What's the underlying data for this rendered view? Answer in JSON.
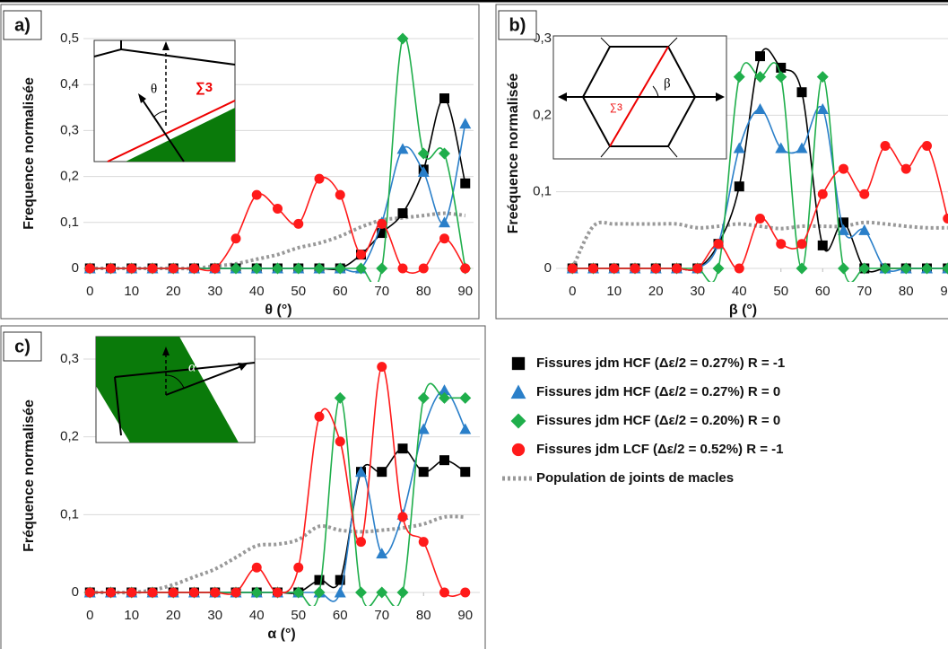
{
  "legend": [
    {
      "name": "Fissures jdm HCF (Δε/2 =  0.27%) R = -1",
      "color": "#000000",
      "marker": "square"
    },
    {
      "name": "Fissures jdm HCF (Δε/2 =  0.27%) R = 0",
      "color": "#2a7fc9",
      "marker": "triangle"
    },
    {
      "name": "Fissures jdm HCF (Δε/2 =  0.20%) R = 0",
      "color": "#1fae4b",
      "marker": "diamond"
    },
    {
      "name": "Fissures jdm LCF (Δε/2 =  0.52%) R = -1",
      "color": "#ff1a1a",
      "marker": "circle"
    },
    {
      "name": "Population de joints de macles",
      "color": "#999999",
      "marker": "dotted-line"
    }
  ],
  "chart_data": [
    {
      "type": "line",
      "panel_label": "a)",
      "x_label": "θ (°)",
      "y_label": "Frequence normalisée",
      "inset_labels": [
        "θ",
        "∑3"
      ],
      "x": [
        0,
        5,
        10,
        15,
        20,
        25,
        30,
        35,
        40,
        45,
        50,
        55,
        60,
        65,
        70,
        75,
        80,
        85,
        90
      ],
      "xlim": [
        -5,
        95
      ],
      "xticks": [
        0,
        10,
        20,
        30,
        40,
        50,
        60,
        70,
        80,
        90
      ],
      "ylim": [
        0,
        0.5
      ],
      "yticks": [
        0,
        {
          "value": 0.1,
          "label": "0,1"
        },
        {
          "value": 0.2,
          "label": "0,2"
        },
        {
          "value": 0.3,
          "label": "0,3"
        },
        {
          "value": 0.4,
          "label": "0,4"
        },
        {
          "value": 0.5,
          "label": "0,5"
        }
      ],
      "grid": true,
      "series": [
        {
          "values": [
            0,
            0,
            0,
            0,
            0,
            0,
            0,
            0,
            0,
            0,
            0,
            0,
            0,
            0.03,
            0.077,
            0.12,
            0.215,
            0.37,
            0.185
          ]
        },
        {
          "values": [
            0,
            0,
            0,
            0,
            0,
            0,
            0,
            0,
            0,
            0,
            0,
            0,
            0,
            0,
            0.1,
            0.26,
            0.21,
            0.1,
            0.315
          ]
        },
        {
          "values": [
            0,
            0,
            0,
            0,
            0,
            0,
            0,
            0,
            0,
            0,
            0,
            0,
            0,
            0,
            0,
            0.5,
            0.25,
            0.25,
            0
          ]
        },
        {
          "values": [
            0,
            0,
            0,
            0,
            0,
            0,
            0,
            0.065,
            0.16,
            0.13,
            0.097,
            0.195,
            0.16,
            0.03,
            0.097,
            0,
            0,
            0.065,
            0
          ]
        },
        {
          "values": [
            0,
            0,
            0,
            0,
            0,
            0,
            0.005,
            0.01,
            0.02,
            0.03,
            0.045,
            0.055,
            0.07,
            0.09,
            0.105,
            0.11,
            0.115,
            0.12,
            0.115
          ]
        }
      ]
    },
    {
      "type": "line",
      "panel_label": "b)",
      "x_label": "β (°)",
      "y_label": "Freéquence normalisée",
      "inset_labels": [
        "β",
        "∑3"
      ],
      "x": [
        0,
        5,
        10,
        15,
        20,
        25,
        30,
        35,
        40,
        45,
        50,
        55,
        60,
        65,
        70,
        75,
        80,
        85,
        90
      ],
      "xlim": [
        -5,
        95
      ],
      "xticks": [
        0,
        10,
        20,
        30,
        40,
        50,
        60,
        70,
        80,
        90
      ],
      "ylim": [
        0,
        0.3
      ],
      "yticks": [
        0,
        {
          "value": 0.1,
          "label": "0,1"
        },
        {
          "value": 0.2,
          "label": "0,2"
        },
        {
          "value": 0.3,
          "label": "0,3"
        }
      ],
      "grid": true,
      "series": [
        {
          "values": [
            0,
            0,
            0,
            0,
            0,
            0,
            0,
            0.032,
            0.107,
            0.277,
            0.262,
            0.23,
            0.03,
            0.06,
            0,
            0,
            0,
            0,
            0
          ]
        },
        {
          "values": [
            0,
            0,
            0,
            0,
            0,
            0,
            0,
            0.032,
            0.157,
            0.208,
            0.157,
            0.157,
            0.208,
            0.05,
            0.05,
            0,
            0,
            0,
            0
          ]
        },
        {
          "values": [
            0,
            0,
            0,
            0,
            0,
            0,
            0,
            0,
            0.25,
            0.25,
            0.25,
            0,
            0.25,
            0,
            0,
            0,
            0,
            0,
            0
          ]
        },
        {
          "values": [
            0,
            0,
            0,
            0,
            0,
            0,
            0,
            0.032,
            0,
            0.065,
            0.032,
            0.032,
            0.097,
            0.13,
            0.097,
            0.16,
            0.13,
            0.16,
            0.065
          ]
        },
        {
          "values": [
            0,
            0.055,
            0.058,
            0.058,
            0.058,
            0.058,
            0.053,
            0.055,
            0.058,
            0.055,
            0.052,
            0.055,
            0.055,
            0.055,
            0.06,
            0.058,
            0.055,
            0.053,
            0.053
          ]
        }
      ]
    },
    {
      "type": "line",
      "panel_label": "c)",
      "x_label": "α (°)",
      "y_label": "Fréquence normalisée",
      "inset_labels": [
        "α"
      ],
      "x": [
        0,
        5,
        10,
        15,
        20,
        25,
        30,
        35,
        40,
        45,
        50,
        55,
        60,
        65,
        70,
        75,
        80,
        85,
        90
      ],
      "xlim": [
        -5,
        95
      ],
      "xticks": [
        0,
        10,
        20,
        30,
        40,
        50,
        60,
        70,
        80,
        90
      ],
      "ylim": [
        0,
        0.3
      ],
      "yticks": [
        0,
        {
          "value": 0.1,
          "label": "0,1"
        },
        {
          "value": 0.2,
          "label": "0,2"
        },
        {
          "value": 0.3,
          "label": "0,3"
        }
      ],
      "grid": true,
      "series": [
        {
          "values": [
            0,
            0,
            0,
            0,
            0,
            0,
            0,
            0,
            0,
            0,
            0,
            0.016,
            0.016,
            0.155,
            0.155,
            0.185,
            0.155,
            0.17,
            0.155
          ]
        },
        {
          "values": [
            0,
            0,
            0,
            0,
            0,
            0,
            0,
            0,
            0,
            0,
            0,
            0,
            0,
            0.155,
            0.05,
            0.1,
            0.21,
            0.26,
            0.21
          ]
        },
        {
          "values": [
            0,
            0,
            0,
            0,
            0,
            0,
            0,
            0,
            0,
            0,
            0,
            0,
            0.25,
            0,
            0,
            0,
            0.25,
            0.25,
            0.25
          ]
        },
        {
          "values": [
            0,
            0,
            0,
            0,
            0,
            0,
            0,
            0,
            0.032,
            0,
            0.032,
            0.226,
            0.194,
            0.065,
            0.29,
            0.097,
            0.065,
            0,
            0
          ]
        },
        {
          "values": [
            0,
            0,
            0,
            0.003,
            0.01,
            0.02,
            0.03,
            0.045,
            0.06,
            0.062,
            0.068,
            0.085,
            0.08,
            0.078,
            0.08,
            0.083,
            0.088,
            0.097,
            0.097
          ]
        }
      ]
    }
  ]
}
